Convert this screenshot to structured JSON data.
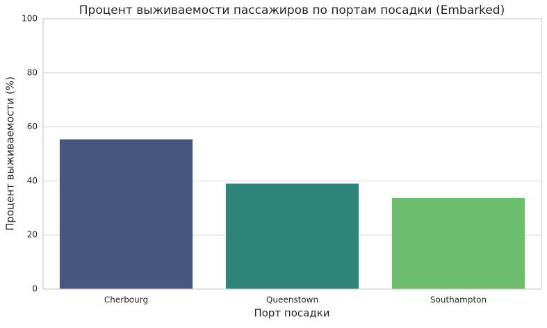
{
  "chart_data": {
    "type": "bar",
    "title": "Процент выживаемости пассажиров по портам посадки (Embarked)",
    "x_label": "Порт посадки",
    "y_label": "Процент выживаемости (%)",
    "categories": [
      "Cherbourg",
      "Queenstown",
      "Southampton"
    ],
    "values": [
      55.4,
      39.0,
      33.7
    ],
    "colors": [
      "#46567f",
      "#2e837b",
      "#6cbd6d"
    ],
    "ylim": [
      0,
      100
    ],
    "yticks": [
      0,
      20,
      40,
      60,
      80,
      100
    ],
    "grid": true
  }
}
